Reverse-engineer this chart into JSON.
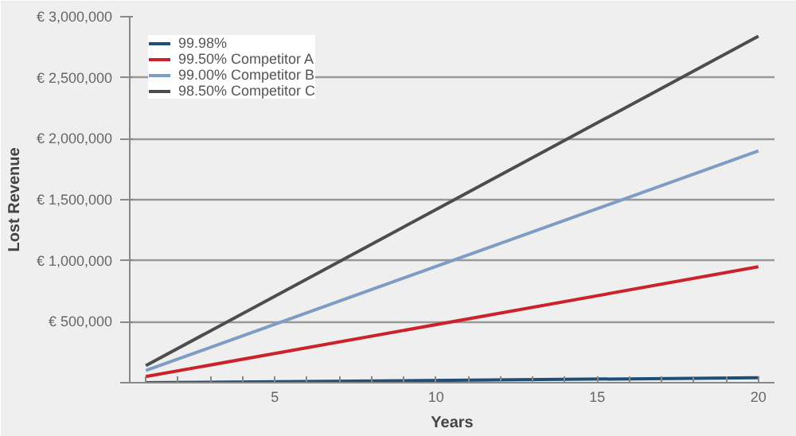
{
  "chart_data": {
    "type": "line",
    "xlabel": "Years",
    "ylabel": "Lost Revenue",
    "x": [
      1,
      20
    ],
    "series": [
      {
        "name": "99.98%",
        "color": "#1f4e79",
        "values": [
          0,
          40000
        ]
      },
      {
        "name": "99.50% Competitor A",
        "color": "#cc2229",
        "values": [
          50000,
          950000
        ]
      },
      {
        "name": "99.00% Competitor B",
        "color": "#7f9cc4",
        "values": [
          100000,
          1900000
        ]
      },
      {
        "name": "98.50% Competitor C",
        "color": "#4d4d4d",
        "values": [
          140000,
          2840000
        ]
      }
    ],
    "xlim": [
      0.5,
      20.5
    ],
    "xticks": [
      {
        "value": 1,
        "label": null
      },
      {
        "value": 2,
        "label": null
      },
      {
        "value": 3,
        "label": null
      },
      {
        "value": 4,
        "label": null
      },
      5,
      {
        "value": 6,
        "label": null
      },
      {
        "value": 7,
        "label": null
      },
      {
        "value": 8,
        "label": null
      },
      {
        "value": 9,
        "label": null
      },
      10,
      {
        "value": 11,
        "label": null
      },
      {
        "value": 12,
        "label": null
      },
      {
        "value": 13,
        "label": null
      },
      {
        "value": 14,
        "label": null
      },
      15,
      {
        "value": 16,
        "label": null
      },
      {
        "value": 17,
        "label": null
      },
      {
        "value": 18,
        "label": null
      },
      {
        "value": 19,
        "label": null
      },
      20
    ],
    "ylim": [
      0,
      3000000
    ],
    "yticks": [
      {
        "value": 0,
        "label": null
      },
      {
        "value": 500000,
        "label": "€ 500,000"
      },
      {
        "value": 1000000,
        "label": "€ 1,000,000"
      },
      {
        "value": 1500000,
        "label": "€ 1,500,000"
      },
      {
        "value": 2000000,
        "label": "€ 2,000,000"
      },
      {
        "value": 2500000,
        "label": "€ 2,500,000"
      },
      {
        "value": 3000000,
        "label": "€ 3,000,000"
      }
    ],
    "grid": "y",
    "legend": "top left",
    "marker": "none",
    "line_style": "solid"
  }
}
